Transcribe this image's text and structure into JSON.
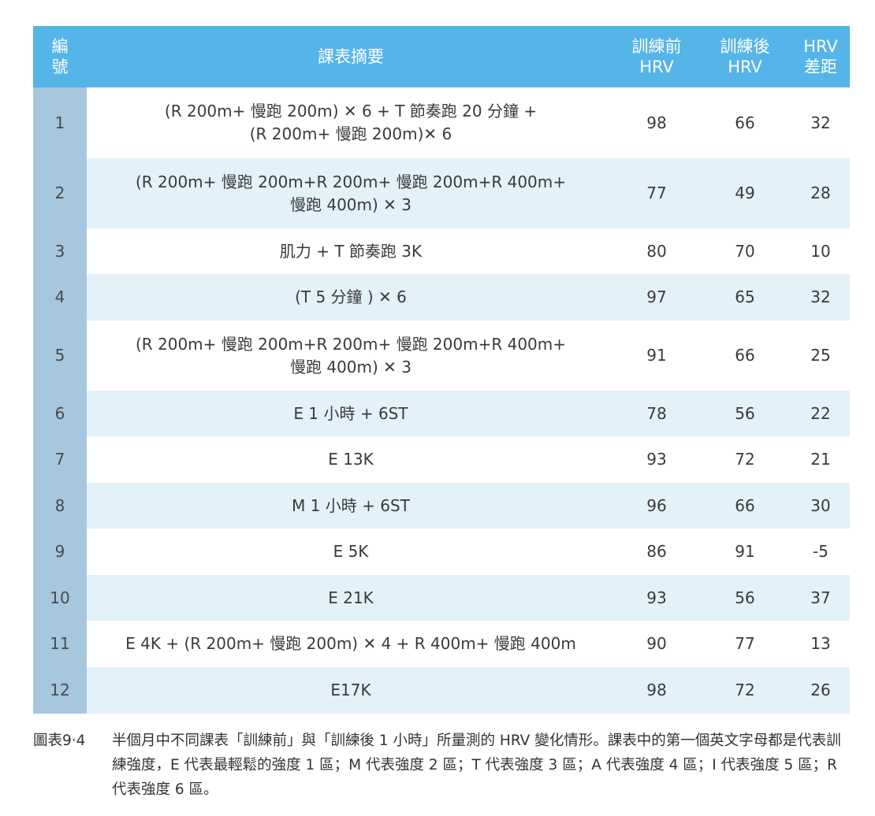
{
  "table": {
    "headers": {
      "no": [
        "編",
        "號"
      ],
      "summary": "課表摘要",
      "pre": [
        "訓練前",
        "HRV"
      ],
      "post": [
        "訓練後",
        "HRV"
      ],
      "diff": [
        "HRV",
        "差距"
      ]
    },
    "rows": [
      {
        "no": "1",
        "summary": [
          "(R 200m+ 慢跑 200m) ✕ 6 + T 節奏跑 20 分鐘 +",
          "(R 200m+ 慢跑 200m)✕ 6"
        ],
        "pre": "98",
        "post": "66",
        "diff": "32"
      },
      {
        "no": "2",
        "summary": [
          "(R 200m+ 慢跑 200m+R 200m+ 慢跑 200m+R 400m+",
          "慢跑 400m) ✕ 3"
        ],
        "pre": "77",
        "post": "49",
        "diff": "28"
      },
      {
        "no": "3",
        "summary": [
          "肌力 + T 節奏跑 3K"
        ],
        "pre": "80",
        "post": "70",
        "diff": "10"
      },
      {
        "no": "4",
        "summary": [
          "(T 5 分鐘 ) ✕ 6"
        ],
        "pre": "97",
        "post": "65",
        "diff": "32"
      },
      {
        "no": "5",
        "summary": [
          "(R 200m+ 慢跑 200m+R 200m+ 慢跑 200m+R 400m+",
          "慢跑 400m) ✕ 3"
        ],
        "pre": "91",
        "post": "66",
        "diff": "25"
      },
      {
        "no": "6",
        "summary": [
          "E 1 小時 + 6ST"
        ],
        "pre": "78",
        "post": "56",
        "diff": "22"
      },
      {
        "no": "7",
        "summary": [
          "E 13K"
        ],
        "pre": "93",
        "post": "72",
        "diff": "21"
      },
      {
        "no": "8",
        "summary": [
          "M 1 小時 + 6ST"
        ],
        "pre": "96",
        "post": "66",
        "diff": "30"
      },
      {
        "no": "9",
        "summary": [
          "E 5K"
        ],
        "pre": "86",
        "post": "91",
        "diff": "-5"
      },
      {
        "no": "10",
        "summary": [
          "E 21K"
        ],
        "pre": "93",
        "post": "56",
        "diff": "37"
      },
      {
        "no": "11",
        "summary": [
          "E 4K + (R 200m+ 慢跑 200m) ✕ 4 + R 400m+ 慢跑 400m"
        ],
        "pre": "90",
        "post": "77",
        "diff": "13"
      },
      {
        "no": "12",
        "summary": [
          "E17K"
        ],
        "pre": "98",
        "post": "72",
        "diff": "26"
      }
    ]
  },
  "caption": {
    "label": "圖表9‧4",
    "text": "半個月中不同課表「訓練前」與「訓練後 1 小時」所量測的 HRV 變化情形。課表中的第一個英文字母都是代表訓練強度，E 代表最輕鬆的強度 1 區；M 代表強度 2 區；T 代表強度 3 區；A 代表強度 4 區；I 代表強度 5 區；R 代表強度 6 區。"
  },
  "colors": {
    "header": "#55b4e8",
    "number_column": "#a6c7de",
    "alt_row": "#e3f1f9"
  }
}
